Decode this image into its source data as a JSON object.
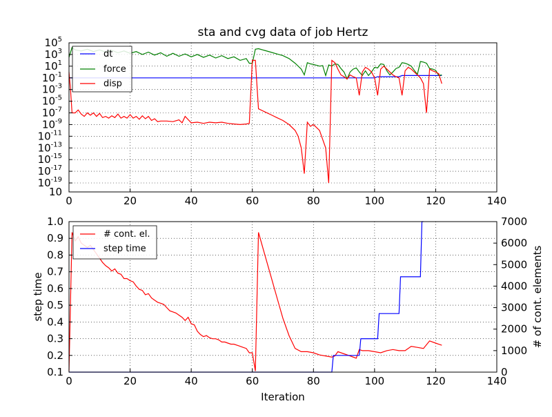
{
  "chart_data": [
    {
      "type": "line",
      "title": "sta and cvg data of job Hertz",
      "xlabel": "",
      "ylabel": "",
      "xlim": [
        0,
        140
      ],
      "ylim_log10": [
        -19,
        5
      ],
      "yscale": "log",
      "grid": true,
      "legend_position": "top-left",
      "x_ticks": [
        "0",
        "20",
        "40",
        "60",
        "80",
        "100",
        "120",
        "140"
      ],
      "y_ticks": [
        {
          "exp": 5,
          "label": "10",
          "sup": "5"
        },
        {
          "exp": 3,
          "label": "10",
          "sup": "3"
        },
        {
          "exp": 1,
          "label": "10",
          "sup": "1"
        },
        {
          "exp": -1,
          "label": "10",
          "sup": "-1"
        },
        {
          "exp": -3,
          "label": "10",
          "sup": "-3"
        },
        {
          "exp": -5,
          "label": "10",
          "sup": "-5"
        },
        {
          "exp": -7,
          "label": "10",
          "sup": "-7"
        },
        {
          "exp": -9,
          "label": "10",
          "sup": "-9"
        },
        {
          "exp": -11,
          "label": "10",
          "sup": "-11"
        },
        {
          "exp": -13,
          "label": "10",
          "sup": "-13"
        },
        {
          "exp": -15,
          "label": "10",
          "sup": "-15"
        },
        {
          "exp": -17,
          "label": "10",
          "sup": "-17"
        },
        {
          "exp": -19,
          "label": "10",
          "sup": "-19"
        },
        {
          "exp": -20.5,
          "label": "10",
          "sup": ""
        }
      ],
      "series": [
        {
          "name": "dt",
          "color": "#0000ff",
          "x": [
            0,
            100,
            101,
            108,
            109,
            122
          ],
          "log10_y": [
            -1,
            -1,
            -0.8,
            -0.8,
            -0.6,
            -0.6
          ]
        },
        {
          "name": "force",
          "color": "#008000",
          "x": [
            0,
            1,
            2,
            4,
            6,
            8,
            10,
            12,
            14,
            16,
            18,
            20,
            22,
            24,
            26,
            28,
            30,
            32,
            34,
            36,
            38,
            40,
            42,
            44,
            46,
            48,
            50,
            52,
            54,
            56,
            58,
            59,
            60,
            61,
            62,
            64,
            66,
            68,
            70,
            72,
            74,
            76,
            77,
            78,
            79,
            80,
            82,
            83,
            84,
            85,
            86,
            87,
            88,
            89,
            90,
            91,
            92,
            93,
            94,
            95,
            96,
            97,
            98,
            99,
            100,
            101,
            102,
            103,
            104,
            105,
            106,
            107,
            108,
            109,
            110,
            111,
            112,
            113,
            114,
            115,
            116,
            117,
            118,
            119,
            120,
            121,
            122
          ],
          "log10_y": [
            2.5,
            4.2,
            3.8,
            3.6,
            3.9,
            3.5,
            3.8,
            3.4,
            3.7,
            3.3,
            3.6,
            3.2,
            3.5,
            3.0,
            3.4,
            2.9,
            3.3,
            2.7,
            3.2,
            2.7,
            3.1,
            2.6,
            3.0,
            2.5,
            2.9,
            2.4,
            2.8,
            2.3,
            2.6,
            2.0,
            2.3,
            1.5,
            1.5,
            3.9,
            4.0,
            3.7,
            3.4,
            3.1,
            2.8,
            2.3,
            1.5,
            0.5,
            -0.5,
            1.6,
            1.4,
            1.3,
            1.0,
            1.1,
            -0.6,
            1.2,
            1.0,
            1.4,
            1.3,
            0.6,
            0.0,
            -1.2,
            0.0,
            0.5,
            0.7,
            0.0,
            -0.6,
            0.2,
            -0.6,
            0.0,
            0.8,
            0.7,
            1.4,
            1.3,
            0.2,
            -0.5,
            0.0,
            0.6,
            0.8,
            1.6,
            1.5,
            1.3,
            1.0,
            0.3,
            -0.4,
            1.8,
            1.7,
            1.5,
            0.6,
            0.5,
            0.3,
            -0.6,
            -0.5
          ]
        },
        {
          "name": "disp",
          "color": "#ff0000",
          "x": [
            0,
            0.5,
            1,
            2,
            3,
            4,
            5,
            6,
            7,
            8,
            9,
            10,
            11,
            12,
            13,
            14,
            15,
            16,
            17,
            18,
            19,
            20,
            21,
            22,
            23,
            24,
            25,
            26,
            27,
            28,
            29,
            30,
            32,
            34,
            36,
            37,
            38,
            40,
            42,
            44,
            46,
            48,
            50,
            52,
            54,
            56,
            58,
            59,
            60,
            61,
            62,
            64,
            66,
            68,
            70,
            72,
            74,
            75,
            76,
            77,
            78,
            79,
            80,
            82,
            84,
            85,
            86,
            87,
            88,
            89,
            90,
            91,
            92,
            93,
            94,
            95,
            96,
            97,
            98,
            99,
            100,
            101,
            102,
            103,
            104,
            105,
            106,
            107,
            108,
            109,
            110,
            111,
            112,
            113,
            114,
            115,
            116,
            117,
            118,
            119,
            120,
            121,
            122
          ],
          "log10_y": [
            0.0,
            -3.0,
            -7.0,
            -7.0,
            -6.5,
            -7.2,
            -7.6,
            -7.0,
            -7.4,
            -7.0,
            -7.6,
            -7.1,
            -7.8,
            -7.6,
            -7.9,
            -7.5,
            -7.8,
            -7.2,
            -7.9,
            -7.6,
            -7.9,
            -7.3,
            -7.9,
            -7.6,
            -8.1,
            -7.5,
            -8.0,
            -7.6,
            -8.3,
            -8.0,
            -8.5,
            -8.4,
            -8.4,
            -8.5,
            -8.2,
            -8.7,
            -7.6,
            -8.7,
            -8.6,
            -8.8,
            -8.6,
            -8.7,
            -8.6,
            -8.8,
            -8.9,
            -9.0,
            -8.9,
            -8.8,
            2.0,
            2.0,
            -6.3,
            -6.8,
            -7.3,
            -7.8,
            -8.3,
            -9.0,
            -10.0,
            -11.0,
            -13.0,
            -17.4,
            -8.6,
            -9.3,
            -9.0,
            -10.0,
            -13.0,
            -19.0,
            2.0,
            1.6,
            0.5,
            -0.5,
            -0.8,
            -1.2,
            -0.5,
            -0.8,
            -1.0,
            -4.0,
            0.0,
            0.8,
            0.5,
            0.0,
            -1.0,
            -4.0,
            0.5,
            1.0,
            0.5,
            0.0,
            -0.5,
            -0.8,
            -1.0,
            -4.0,
            0.2,
            0.8,
            0.5,
            0.0,
            -0.5,
            -1.0,
            -2.0,
            -7.0,
            0.5,
            0.2,
            0.0,
            -0.3,
            -2.0
          ]
        }
      ]
    },
    {
      "type": "line",
      "title": "",
      "xlabel": "Iteration",
      "ylabel": "step time",
      "y2label": "# of cont. elements",
      "xlim": [
        0,
        140
      ],
      "ylim": [
        0.1,
        1.0
      ],
      "y2lim": [
        0,
        7000
      ],
      "grid": true,
      "legend_position": "top-left",
      "x_ticks": [
        "0",
        "20",
        "40",
        "60",
        "80",
        "100",
        "120",
        "140"
      ],
      "y_ticks": [
        "0.1",
        "0.2",
        "0.3",
        "0.4",
        "0.5",
        "0.6",
        "0.7",
        "0.8",
        "0.9",
        "1.0"
      ],
      "y2_ticks": [
        "0",
        "1000",
        "2000",
        "3000",
        "4000",
        "5000",
        "6000",
        "7000"
      ],
      "series": [
        {
          "name": "# cont. el.",
          "axis": "right",
          "color": "#ff0000",
          "x": [
            0,
            1,
            2,
            3,
            4,
            5,
            6,
            7,
            8,
            9,
            10,
            11,
            12,
            13,
            14,
            15,
            16,
            17,
            18,
            19,
            20,
            21,
            22,
            23,
            24,
            25,
            26,
            27,
            28,
            29,
            30,
            31,
            32,
            33,
            34,
            35,
            36,
            37,
            38,
            39,
            40,
            41,
            42,
            43,
            44,
            45,
            46,
            47,
            48,
            49,
            50,
            51,
            52,
            53,
            54,
            55,
            56,
            57,
            58,
            59,
            60,
            61,
            62,
            64,
            66,
            68,
            70,
            72,
            74,
            76,
            78,
            80,
            82,
            84,
            86,
            87,
            88,
            90,
            92,
            94,
            95,
            96,
            98,
            100,
            102,
            104,
            106,
            108,
            110,
            112,
            114,
            116,
            118,
            120,
            122
          ],
          "y": [
            50,
            6500,
            6100,
            6300,
            6000,
            5900,
            5800,
            5900,
            5700,
            5500,
            5300,
            5100,
            4950,
            4850,
            4700,
            4800,
            4600,
            4550,
            4350,
            4350,
            4250,
            4200,
            4000,
            3850,
            3800,
            3600,
            3650,
            3450,
            3350,
            3250,
            3200,
            3150,
            3000,
            2850,
            2800,
            2750,
            2650,
            2550,
            2400,
            2550,
            2250,
            2200,
            1900,
            1750,
            1650,
            1700,
            1600,
            1550,
            1550,
            1500,
            1400,
            1400,
            1350,
            1300,
            1300,
            1250,
            1200,
            1150,
            1100,
            900,
            900,
            50,
            6500,
            5500,
            4500,
            3500,
            2500,
            1700,
            1100,
            950,
            950,
            900,
            800,
            750,
            700,
            750,
            950,
            850,
            750,
            650,
            1050,
            1000,
            1000,
            950,
            900,
            1000,
            1050,
            1000,
            1000,
            1200,
            1150,
            1100,
            1450,
            1350,
            1250
          ]
        },
        {
          "name": "step time",
          "axis": "left",
          "color": "#0000ff",
          "x": [
            0,
            86,
            86.5,
            95,
            95.5,
            101,
            101.5,
            108,
            108.5,
            115,
            115.5,
            116
          ],
          "y": [
            0.1,
            0.1,
            0.2,
            0.2,
            0.3,
            0.3,
            0.45,
            0.45,
            0.67,
            0.67,
            1.0,
            1.0
          ]
        }
      ]
    }
  ]
}
